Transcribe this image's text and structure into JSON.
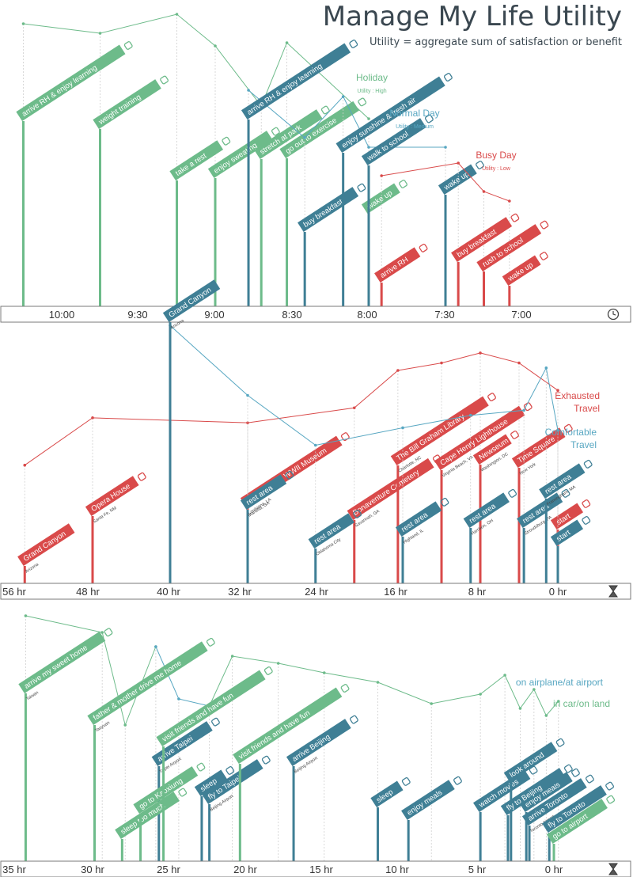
{
  "colors": {
    "high": "#6dbb8a",
    "medium": "#58a7c2",
    "low": "#d94a4a",
    "dark_blue": "#3f7f95",
    "axis": "#7a7a7a",
    "grid": "#cfcfcf",
    "text_dark": "#3a4750"
  },
  "header": {
    "title": "Manage My Life Utility",
    "subtitle": "Utility = aggregate sum of satisfaction or benefit"
  },
  "chart_data": [
    {
      "type": "line",
      "panel": "daily-morning",
      "x_axis_icon": "clock-icon",
      "x_ticks": [
        "10:00",
        "9:30",
        "9:00",
        "8:30",
        "8:00",
        "7:30",
        "7:00"
      ],
      "series": [
        {
          "name": "Holiday",
          "sublabel": "Utility : High",
          "color_key": "high",
          "events": [
            {
              "time": "10:15",
              "label": "arrive RH & enjoy learning",
              "icon": "book-icon",
              "utility": 0.95
            },
            {
              "time": "9:45",
              "label": "weight training",
              "icon": "dumbbell-icon",
              "utility": 0.92
            },
            {
              "time": "9:15",
              "label": "take a rest",
              "icon": "rest-icon",
              "utility": 0.98
            },
            {
              "time": "9:00",
              "label": "enjoy sweating",
              "icon": "smile-icon",
              "utility": 0.88
            },
            {
              "time": "8:42",
              "label": "stretch at park",
              "icon": "stretch-icon",
              "utility": 0.69
            },
            {
              "time": "8:32",
              "label": "go out to exercise",
              "icon": "run-icon",
              "utility": 0.89
            },
            {
              "time": "8:00",
              "label": "wake up",
              "icon": "bed-icon",
              "utility": 0.65
            }
          ]
        },
        {
          "name": "Normal Day",
          "sublabel": "Utility : Medium",
          "color_key": "medium",
          "events": [
            {
              "time": "8:47",
              "label": "arrive RH & enjoy learning",
              "icon": "book-icon",
              "utility": 0.74
            },
            {
              "time": "8:25",
              "label": "buy breakfast",
              "icon": "breakfast-icon",
              "utility": 0.59
            },
            {
              "time": "8:10",
              "label": "enjoy sunshine & fresh air",
              "icon": "sun-icon",
              "utility": 0.72
            },
            {
              "time": "8:00",
              "label": "walk to school",
              "icon": "walk-icon",
              "utility": 0.56
            },
            {
              "time": "7:30",
              "label": "wake up",
              "icon": "bed-icon",
              "utility": 0.56
            }
          ]
        },
        {
          "name": "Busy Day",
          "sublabel": "Utility : Low",
          "color_key": "low",
          "events": [
            {
              "time": "7:55",
              "label": "arrive RH",
              "icon": "building-icon",
              "utility": 0.47
            },
            {
              "time": "7:25",
              "label": "buy breakfast",
              "icon": "breakfast-icon",
              "utility": 0.51
            },
            {
              "time": "7:15",
              "label": "rush to school",
              "icon": "bike-icon",
              "utility": 0.42
            },
            {
              "time": "7:05",
              "label": "wake up",
              "icon": "bed-icon",
              "utility": 0.39
            }
          ]
        }
      ]
    },
    {
      "type": "line",
      "panel": "road-trip",
      "x_axis_icon": "hourglass-icon",
      "x_ticks": [
        "56 hr",
        "48 hr",
        "40 hr",
        "32 hr",
        "24 hr",
        "16 hr",
        "8 hr",
        "0 hr"
      ],
      "series": [
        {
          "name": "Exhausted Travel",
          "color_key": "low",
          "events": [
            {
              "hr": 55,
              "label": "Grand Canyon",
              "sublabel": "Arizona",
              "utility": 0.42,
              "icon": ""
            },
            {
              "hr": 48,
              "label": "Opera House",
              "sublabel": "Santa Fe, NM",
              "utility": 0.61,
              "icon": "opera-icon"
            },
            {
              "hr": 32,
              "label": "The National WWII Museum",
              "sublabel": "Louisiana, LA",
              "utility": 0.59,
              "icon": "museum-icon"
            },
            {
              "hr": 21,
              "label": "Bonaventure Cemetery",
              "sublabel": "Savannah, GA",
              "utility": 0.65,
              "icon": "cemetery-icon"
            },
            {
              "hr": 16.5,
              "label": "The Bill Graham Library",
              "sublabel": "Charlotte, NC",
              "utility": 0.8,
              "icon": "library-icon"
            },
            {
              "hr": 12,
              "label": "Cape Henry Lighthouse",
              "sublabel": "Virginia Beach, VA",
              "utility": 0.83,
              "icon": "lighthouse-icon"
            },
            {
              "hr": 8,
              "label": "Newseum",
              "sublabel": "Washington, DC",
              "utility": 0.87,
              "icon": "news-icon"
            },
            {
              "hr": 4,
              "label": "Time Square",
              "sublabel": "New York",
              "utility": 0.83,
              "icon": "apple-icon"
            },
            {
              "hr": 0,
              "label": "start",
              "sublabel": "",
              "utility": 0.72,
              "icon": "car-icon"
            }
          ]
        },
        {
          "name": "Comfortable Travel",
          "color_key": "medium",
          "events": [
            {
              "hr": 40,
              "label": "Grand Canyon",
              "sublabel": "Arizona",
              "utility": 0.98,
              "icon": ""
            },
            {
              "hr": 32,
              "label": "rest area",
              "sublabel": "Marietta, GA",
              "utility": 0.7,
              "icon": "cup-icon"
            },
            {
              "hr": 25,
              "label": "rest area",
              "sublabel": "Oklahoma City",
              "utility": 0.5,
              "icon": "burger-icon"
            },
            {
              "hr": 16,
              "label": "rest area",
              "sublabel": "Highland, IL",
              "utility": 0.57,
              "icon": "bowl-icon"
            },
            {
              "hr": 9,
              "label": "rest area",
              "sublabel": "Harrison, OH",
              "utility": 0.62,
              "icon": "drink-icon"
            },
            {
              "hr": 3.5,
              "label": "rest area",
              "sublabel": "Stroudsburg, PA",
              "utility": 0.64,
              "icon": "cup-icon"
            },
            {
              "hr": 1.2,
              "label": "rest area",
              "sublabel": "Framingham, MA",
              "utility": 0.81,
              "icon": "cup-icon"
            },
            {
              "hr": 0,
              "label": "start",
              "sublabel": "",
              "utility": 0.56,
              "icon": "car-icon"
            }
          ]
        }
      ]
    },
    {
      "type": "line",
      "panel": "trip-home",
      "x_axis_icon": "hourglass-icon",
      "x_ticks": [
        "35 hr",
        "30 hr",
        "25 hr",
        "20 hr",
        "15 hr",
        "10 hr",
        "5 hr",
        "0 hr"
      ],
      "series": [
        {
          "name": "on airplane/at airport",
          "color_key": "medium",
          "points": [
            {
              "hr": 34.5,
              "utility": 0.99
            },
            {
              "hr": 29.5,
              "utility": 0.92
            },
            {
              "hr": 28,
              "utility": 0.53
            },
            {
              "hr": 26,
              "utility": 0.86
            },
            {
              "hr": 24.5,
              "utility": 0.64
            },
            {
              "hr": 22.5,
              "utility": 0.61
            },
            {
              "hr": 21,
              "utility": 0.82
            },
            {
              "hr": 18,
              "utility": 0.79
            },
            {
              "hr": 15,
              "utility": 0.75
            },
            {
              "hr": 11.5,
              "utility": 0.71
            },
            {
              "hr": 8,
              "utility": 0.62
            },
            {
              "hr": 4.8,
              "utility": 0.66
            },
            {
              "hr": 3.2,
              "utility": 0.74
            },
            {
              "hr": 2.2,
              "utility": 0.6
            },
            {
              "hr": 1.3,
              "utility": 0.68
            },
            {
              "hr": 0.5,
              "utility": 0.57
            },
            {
              "hr": -0.3,
              "utility": 0.63
            }
          ],
          "events": [
            {
              "hr": 25.8,
              "label": "arrive Taipei",
              "sublabel": "Taipei Airport",
              "icon": "plane-icon"
            },
            {
              "hr": 23,
              "label": "sleep",
              "sublabel": "",
              "icon": "zzz-icon"
            },
            {
              "hr": 22.5,
              "label": "fly to Taipei",
              "sublabel": "Beijing Airport",
              "icon": "plane-icon"
            },
            {
              "hr": 17,
              "label": "arrive Beijing",
              "sublabel": "Beijing Airport",
              "icon": "plane-icon"
            },
            {
              "hr": 11.5,
              "label": "sleep",
              "sublabel": "",
              "icon": "zzz-icon"
            },
            {
              "hr": 9.5,
              "label": "enjoy meals",
              "sublabel": "",
              "icon": "bowl-icon"
            },
            {
              "hr": 4.8,
              "label": "watch movies",
              "sublabel": "",
              "icon": "film-icon"
            },
            {
              "hr": 2.8,
              "label": "look around",
              "sublabel": "",
              "icon": "bag-icon"
            },
            {
              "hr": 1.8,
              "label": "enjoy meals",
              "sublabel": "",
              "icon": "bowl-icon"
            },
            {
              "hr": 3,
              "label": "fly to Beijing",
              "sublabel": "",
              "icon": "plane-icon"
            },
            {
              "hr": 1.6,
              "label": "arrive Toronto",
              "sublabel": "Toronto Airport",
              "icon": "plane-icon"
            },
            {
              "hr": 0.3,
              "label": "fly to Toronto",
              "sublabel": "Logan Airport",
              "icon": "plane-icon"
            }
          ]
        },
        {
          "name": "in car/on land",
          "color_key": "high",
          "events": [
            {
              "hr": 34.5,
              "label": "arrive my sweet home",
              "sublabel": "Taiwan",
              "icon": "car-icon"
            },
            {
              "hr": 30,
              "label": "father & mother drive me home",
              "sublabel": "Taoyuan",
              "icon": "car-icon"
            },
            {
              "hr": 28.2,
              "label": "sleep too much",
              "sublabel": "",
              "icon": "zzz-icon"
            },
            {
              "hr": 27,
              "label": "go to Kaoxiung",
              "sublabel": "",
              "icon": "car-icon"
            },
            {
              "hr": 25.5,
              "label": "visit friends and have fun",
              "sublabel": "",
              "icon": "people-icon"
            },
            {
              "hr": 20.5,
              "label": "visit friends and have fun",
              "sublabel": "",
              "icon": "people-icon"
            },
            {
              "hr": 0,
              "label": "go to airport",
              "sublabel": "",
              "icon": "car-icon"
            }
          ]
        }
      ]
    }
  ]
}
